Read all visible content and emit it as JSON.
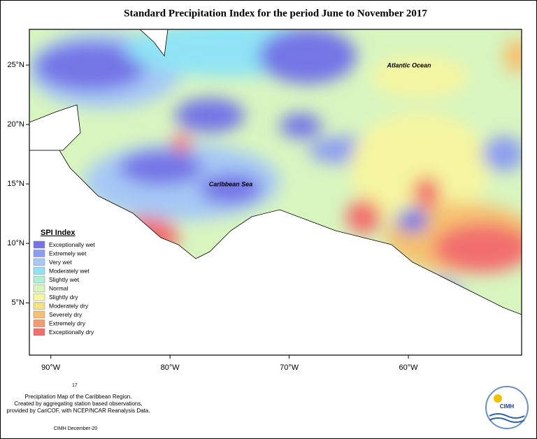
{
  "title": "Standard Precipitation Index for the period June to November 2017",
  "map": {
    "lon_lim": [
      -91.8,
      -50.5
    ],
    "lat_lim": [
      0.6,
      28
    ],
    "lon_ticks": [
      {
        "value": -90,
        "label": "90°W"
      },
      {
        "value": -80,
        "label": "80°W"
      },
      {
        "value": -70,
        "label": "70°W"
      },
      {
        "value": -60,
        "label": "60°W"
      }
    ],
    "lat_ticks": [
      {
        "value": 25,
        "label": "25°N"
      },
      {
        "value": 20,
        "label": "20°N"
      },
      {
        "value": 15,
        "label": "15°N"
      },
      {
        "value": 10,
        "label": "10°N"
      },
      {
        "value": 5,
        "label": "5°N"
      }
    ],
    "labels": [
      "Atlantic Ocean",
      "Caribbean Sea"
    ]
  },
  "legend": {
    "title": "SPI Index",
    "items": [
      {
        "name": "Exceptionally wet",
        "color": "#7474e6"
      },
      {
        "name": "Extremely wet",
        "color": "#8c9cf0"
      },
      {
        "name": "Very wet",
        "color": "#a6c8f5"
      },
      {
        "name": "Moderately wet",
        "color": "#8fe3f5"
      },
      {
        "name": "Slightly wet",
        "color": "#aef0d4"
      },
      {
        "name": "Normal",
        "color": "#d8f5c0"
      },
      {
        "name": "Slightly dry",
        "color": "#f5f5a0"
      },
      {
        "name": "Moderately dry",
        "color": "#f7e080"
      },
      {
        "name": "Severely dry",
        "color": "#f5c070"
      },
      {
        "name": "Extremely dry",
        "color": "#f59a70"
      },
      {
        "name": "Exceptionally dry",
        "color": "#f26e6e"
      }
    ]
  },
  "page_number": "17",
  "caption": [
    "Precipitation Map of the Caribbean Region.",
    "Created by aggregating station based observations,",
    "provided by CariCOF, with NCEP/NCAR Reanalysis Data."
  ],
  "credit": "CIMH December-20",
  "logo": "CIMH"
}
